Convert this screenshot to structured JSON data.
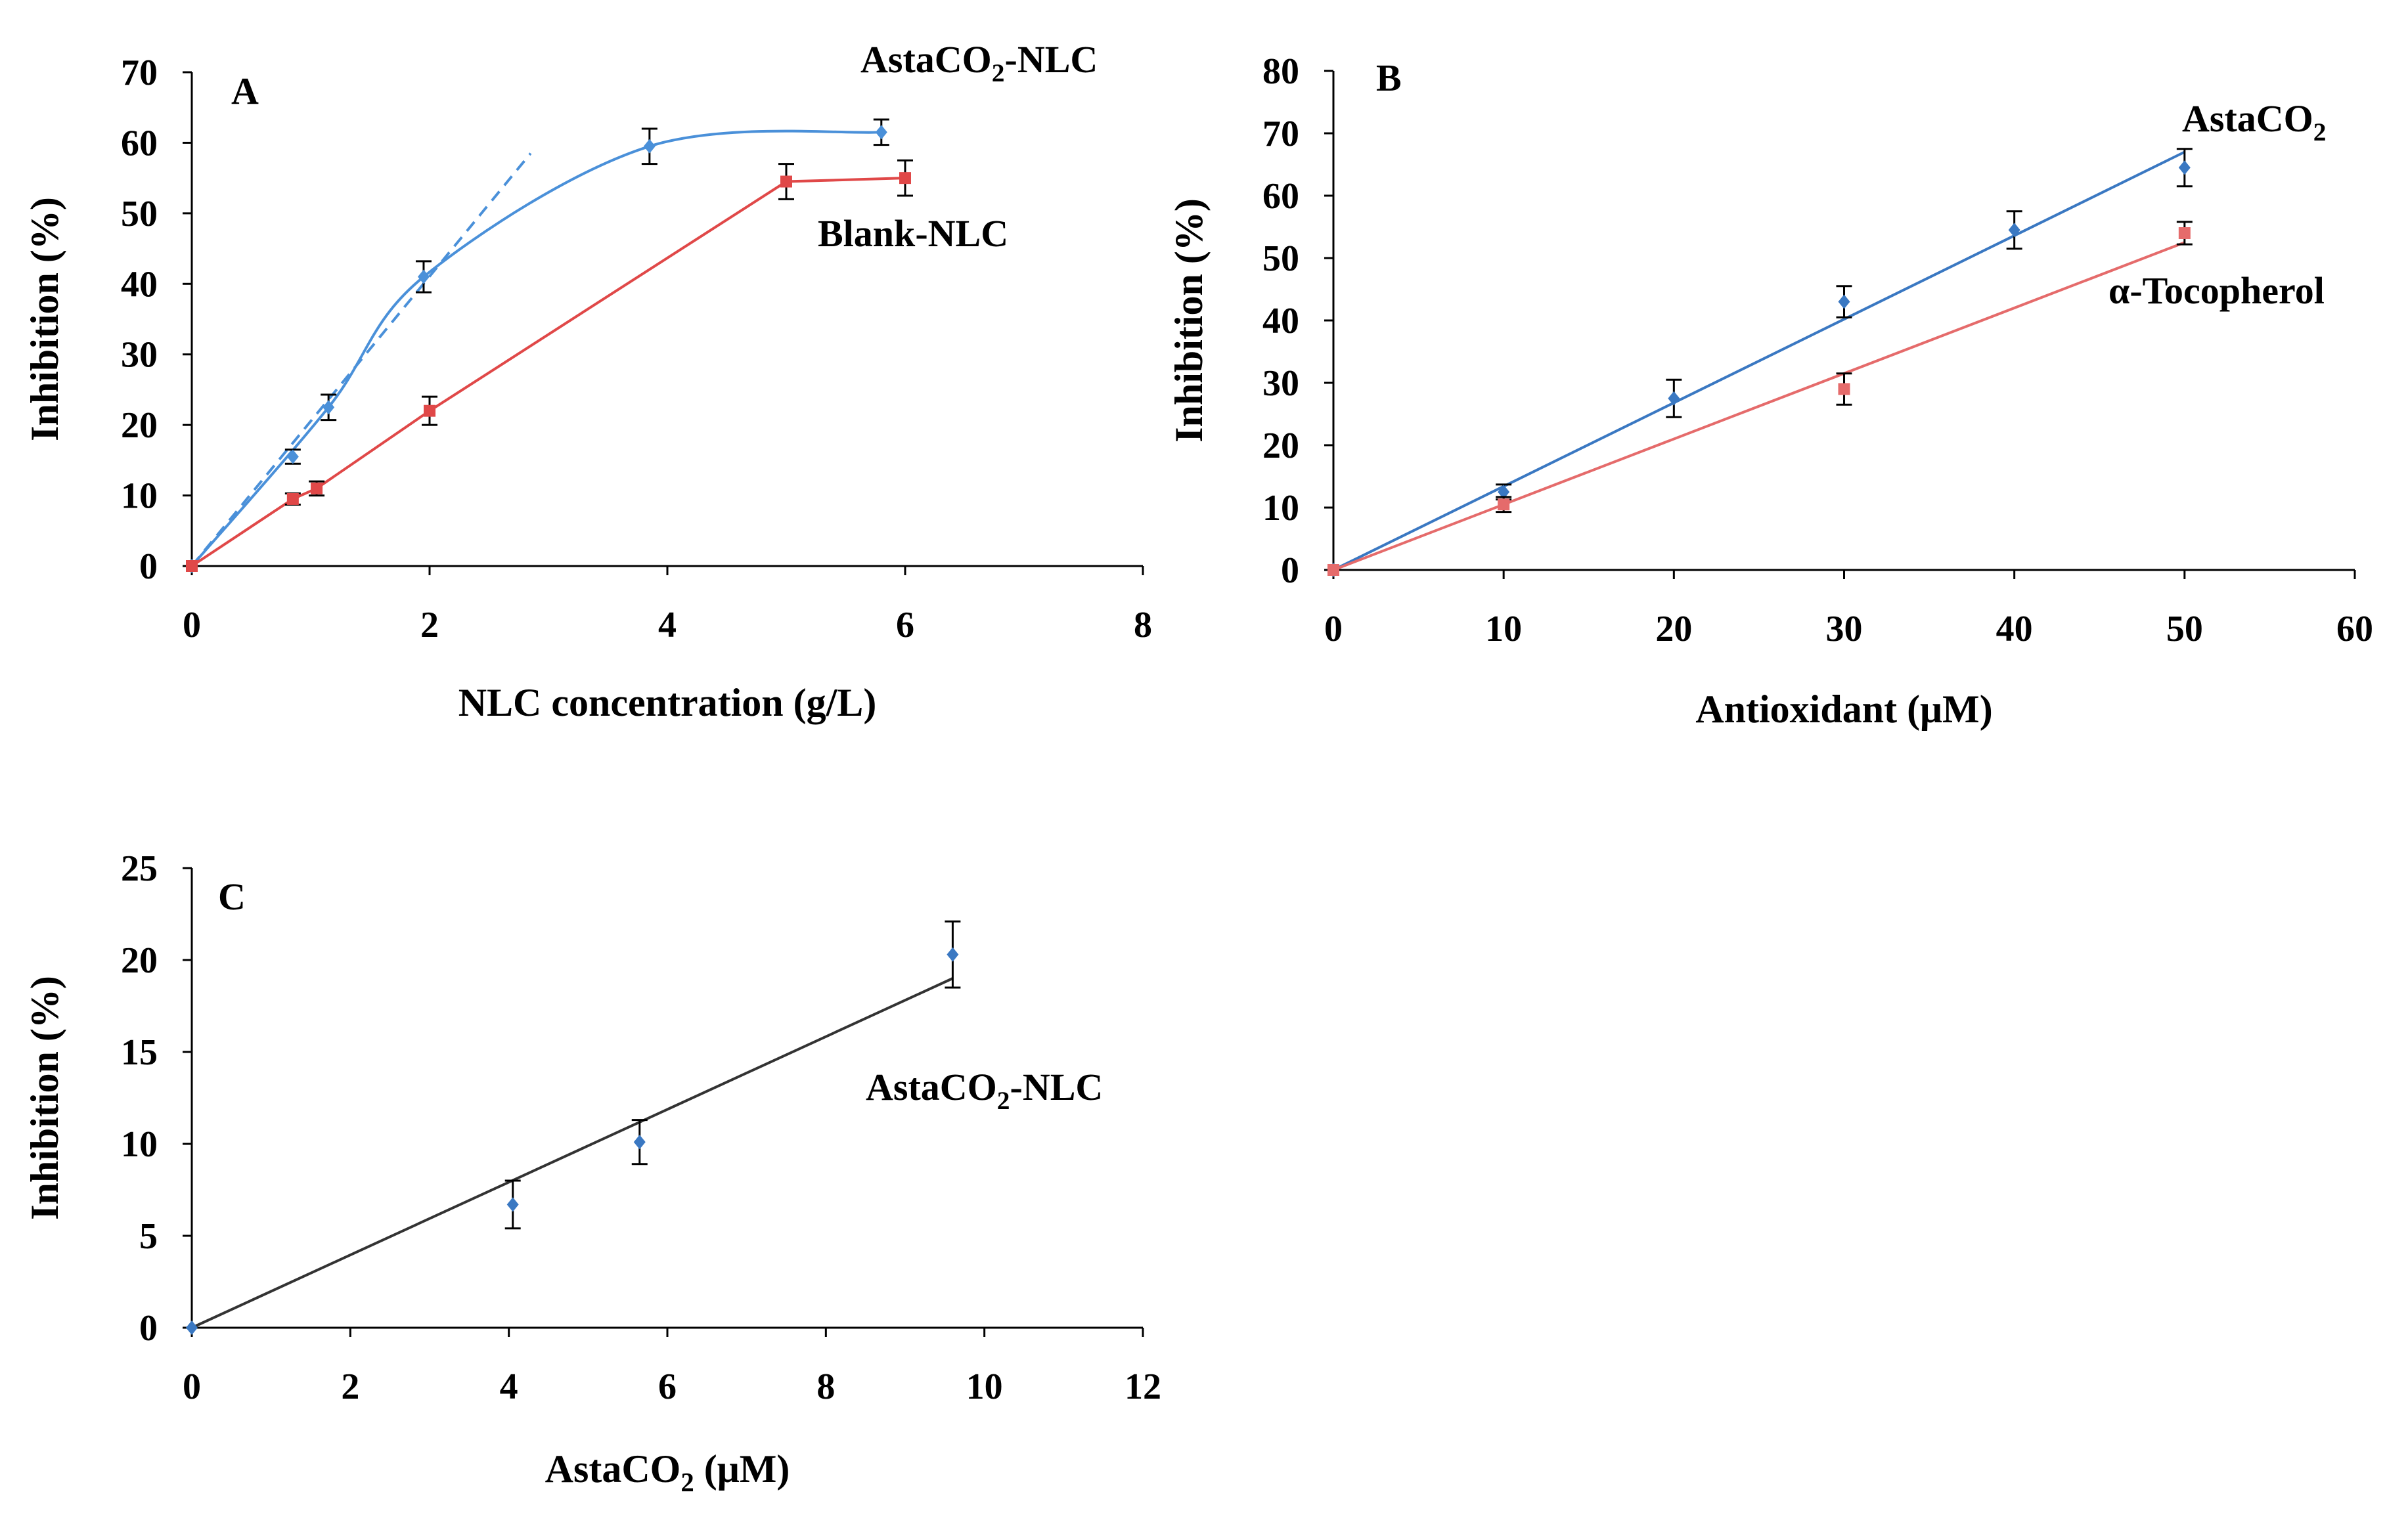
{
  "chart_data": [
    {
      "id": "A",
      "type": "scatter",
      "panel_label": "A",
      "xlabel": "NLC concentration (g/L)",
      "ylabel": "Inhibition (%)",
      "xlim": [
        0,
        8
      ],
      "ylim": [
        0,
        70
      ],
      "xticks": [
        0,
        2,
        4,
        6,
        8
      ],
      "yticks": [
        0,
        10,
        20,
        30,
        40,
        50,
        60,
        70
      ],
      "series": [
        {
          "name": "AstaCO2-NLC",
          "label_main": "AstaCO",
          "label_sub": "2",
          "label_rest": "-NLC",
          "color": "#4a90d9",
          "points": [
            {
              "x": 0,
              "y": 0,
              "err": 0
            },
            {
              "x": 0.85,
              "y": 15.5,
              "err": 1.0
            },
            {
              "x": 1.15,
              "y": 22.5,
              "err": 1.8
            },
            {
              "x": 1.95,
              "y": 41,
              "err": 2.2
            },
            {
              "x": 3.85,
              "y": 59.5,
              "err": 2.5
            },
            {
              "x": 5.8,
              "y": 61.5,
              "err": 1.8
            }
          ],
          "fit": "curve",
          "tangent": {
            "x0": 0,
            "y0": 0,
            "x1": 2.85,
            "y1": 58.5
          }
        },
        {
          "name": "Blank-NLC",
          "label_main": "Blank-NLC",
          "color": "#e04848",
          "points": [
            {
              "x": 0,
              "y": 0,
              "err": 0
            },
            {
              "x": 0.85,
              "y": 9.5,
              "err": 0.8
            },
            {
              "x": 1.05,
              "y": 11,
              "err": 1.0
            },
            {
              "x": 2.0,
              "y": 22,
              "err": 2.0
            },
            {
              "x": 5.0,
              "y": 54.5,
              "err": 2.5
            },
            {
              "x": 6.0,
              "y": 55,
              "err": 2.5
            }
          ],
          "fit": "polyline"
        }
      ]
    },
    {
      "id": "B",
      "type": "scatter",
      "panel_label": "B",
      "xlabel": "Antioxidant (μM)",
      "ylabel": "Inhibition (%)",
      "xlim": [
        0,
        60
      ],
      "ylim": [
        0,
        80
      ],
      "xticks": [
        0,
        10,
        20,
        30,
        40,
        50,
        60
      ],
      "yticks": [
        0,
        10,
        20,
        30,
        40,
        50,
        60,
        70,
        80
      ],
      "series": [
        {
          "name": "AstaCO2",
          "label_main": "AstaCO",
          "label_sub": "2",
          "label_rest": "",
          "color": "#3a78c2",
          "points": [
            {
              "x": 0,
              "y": 0,
              "err": 0
            },
            {
              "x": 10,
              "y": 12.5,
              "err": 1.2
            },
            {
              "x": 20,
              "y": 27.5,
              "err": 3.0
            },
            {
              "x": 30,
              "y": 43,
              "err": 2.5
            },
            {
              "x": 40,
              "y": 54.5,
              "err": 3.0
            },
            {
              "x": 50,
              "y": 64.5,
              "err": 3.0
            }
          ],
          "fit": "line",
          "line_end": {
            "x": 50,
            "y": 67
          }
        },
        {
          "name": "α-Tocopherol",
          "label_main": "α-Tocopherol",
          "color": "#e56b6b",
          "points": [
            {
              "x": 0,
              "y": 0,
              "err": 0
            },
            {
              "x": 10,
              "y": 10.5,
              "err": 1.2
            },
            {
              "x": 30,
              "y": 29,
              "err": 2.5
            },
            {
              "x": 50,
              "y": 54,
              "err": 1.8
            }
          ],
          "fit": "line",
          "line_end": {
            "x": 50,
            "y": 52.5
          }
        }
      ]
    },
    {
      "id": "C",
      "type": "scatter",
      "panel_label": "C",
      "xlabel_main": "AstaCO",
      "xlabel_sub": "2",
      "xlabel_rest": " (μM)",
      "ylabel": "Inhibition (%)",
      "xlim": [
        0,
        12
      ],
      "ylim": [
        0,
        25
      ],
      "xticks": [
        0,
        2,
        4,
        6,
        8,
        10,
        12
      ],
      "yticks": [
        0,
        5,
        10,
        15,
        20,
        25
      ],
      "series": [
        {
          "name": "AstaCO2-NLC",
          "label_main": "AstaCO",
          "label_sub": "2",
          "label_rest": "-NLC",
          "color": "#3a78c2",
          "line_color": "#333333",
          "points": [
            {
              "x": 0,
              "y": 0,
              "err": 0
            },
            {
              "x": 4.05,
              "y": 6.7,
              "err": 1.3
            },
            {
              "x": 5.65,
              "y": 10.1,
              "err": 1.2
            },
            {
              "x": 9.6,
              "y": 20.3,
              "err": 1.8
            }
          ],
          "fit": "line",
          "line_end": {
            "x": 9.6,
            "y": 19
          }
        }
      ]
    }
  ]
}
